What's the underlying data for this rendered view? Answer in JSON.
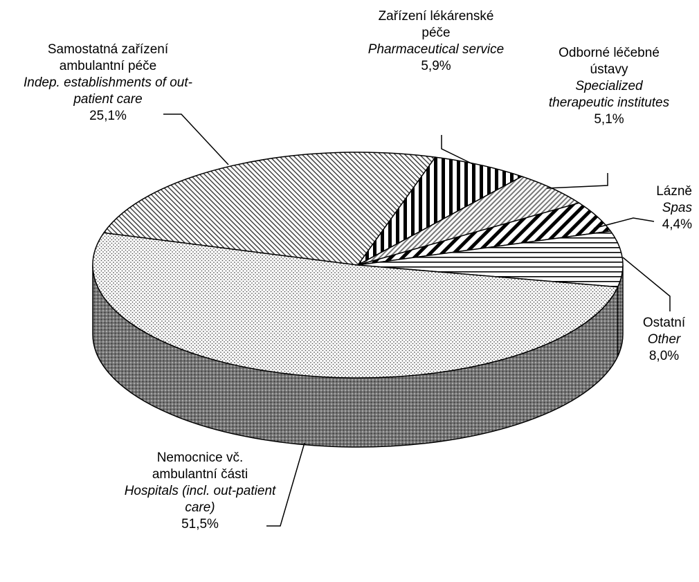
{
  "chart_data": {
    "type": "pie3d",
    "categories": [
      "Zařízení lékárenské péče",
      "Odborné léčebné ústavy",
      "Lázně",
      "Ostatní",
      "Nemocnice vč. ambulantní části",
      "Samostatná zařízení ambulantní péče"
    ],
    "categories_en": [
      "Pharmaceutical service",
      "Specialized therapeutic institutes",
      "Spas",
      "Other",
      "Hospitals (incl. out-patient care)",
      "Indep. establishments of out-patient care"
    ],
    "values": [
      5.9,
      5.1,
      4.4,
      8.0,
      51.5,
      25.1
    ],
    "value_labels": [
      "5,9%",
      "5,1%",
      "4,4%",
      "8,0%",
      "51,5%",
      "25,1%"
    ],
    "patterns": [
      "vstripe",
      "diag-fine-grey",
      "diag-thick",
      "hstripe",
      "dots",
      "diag-fine"
    ]
  }
}
